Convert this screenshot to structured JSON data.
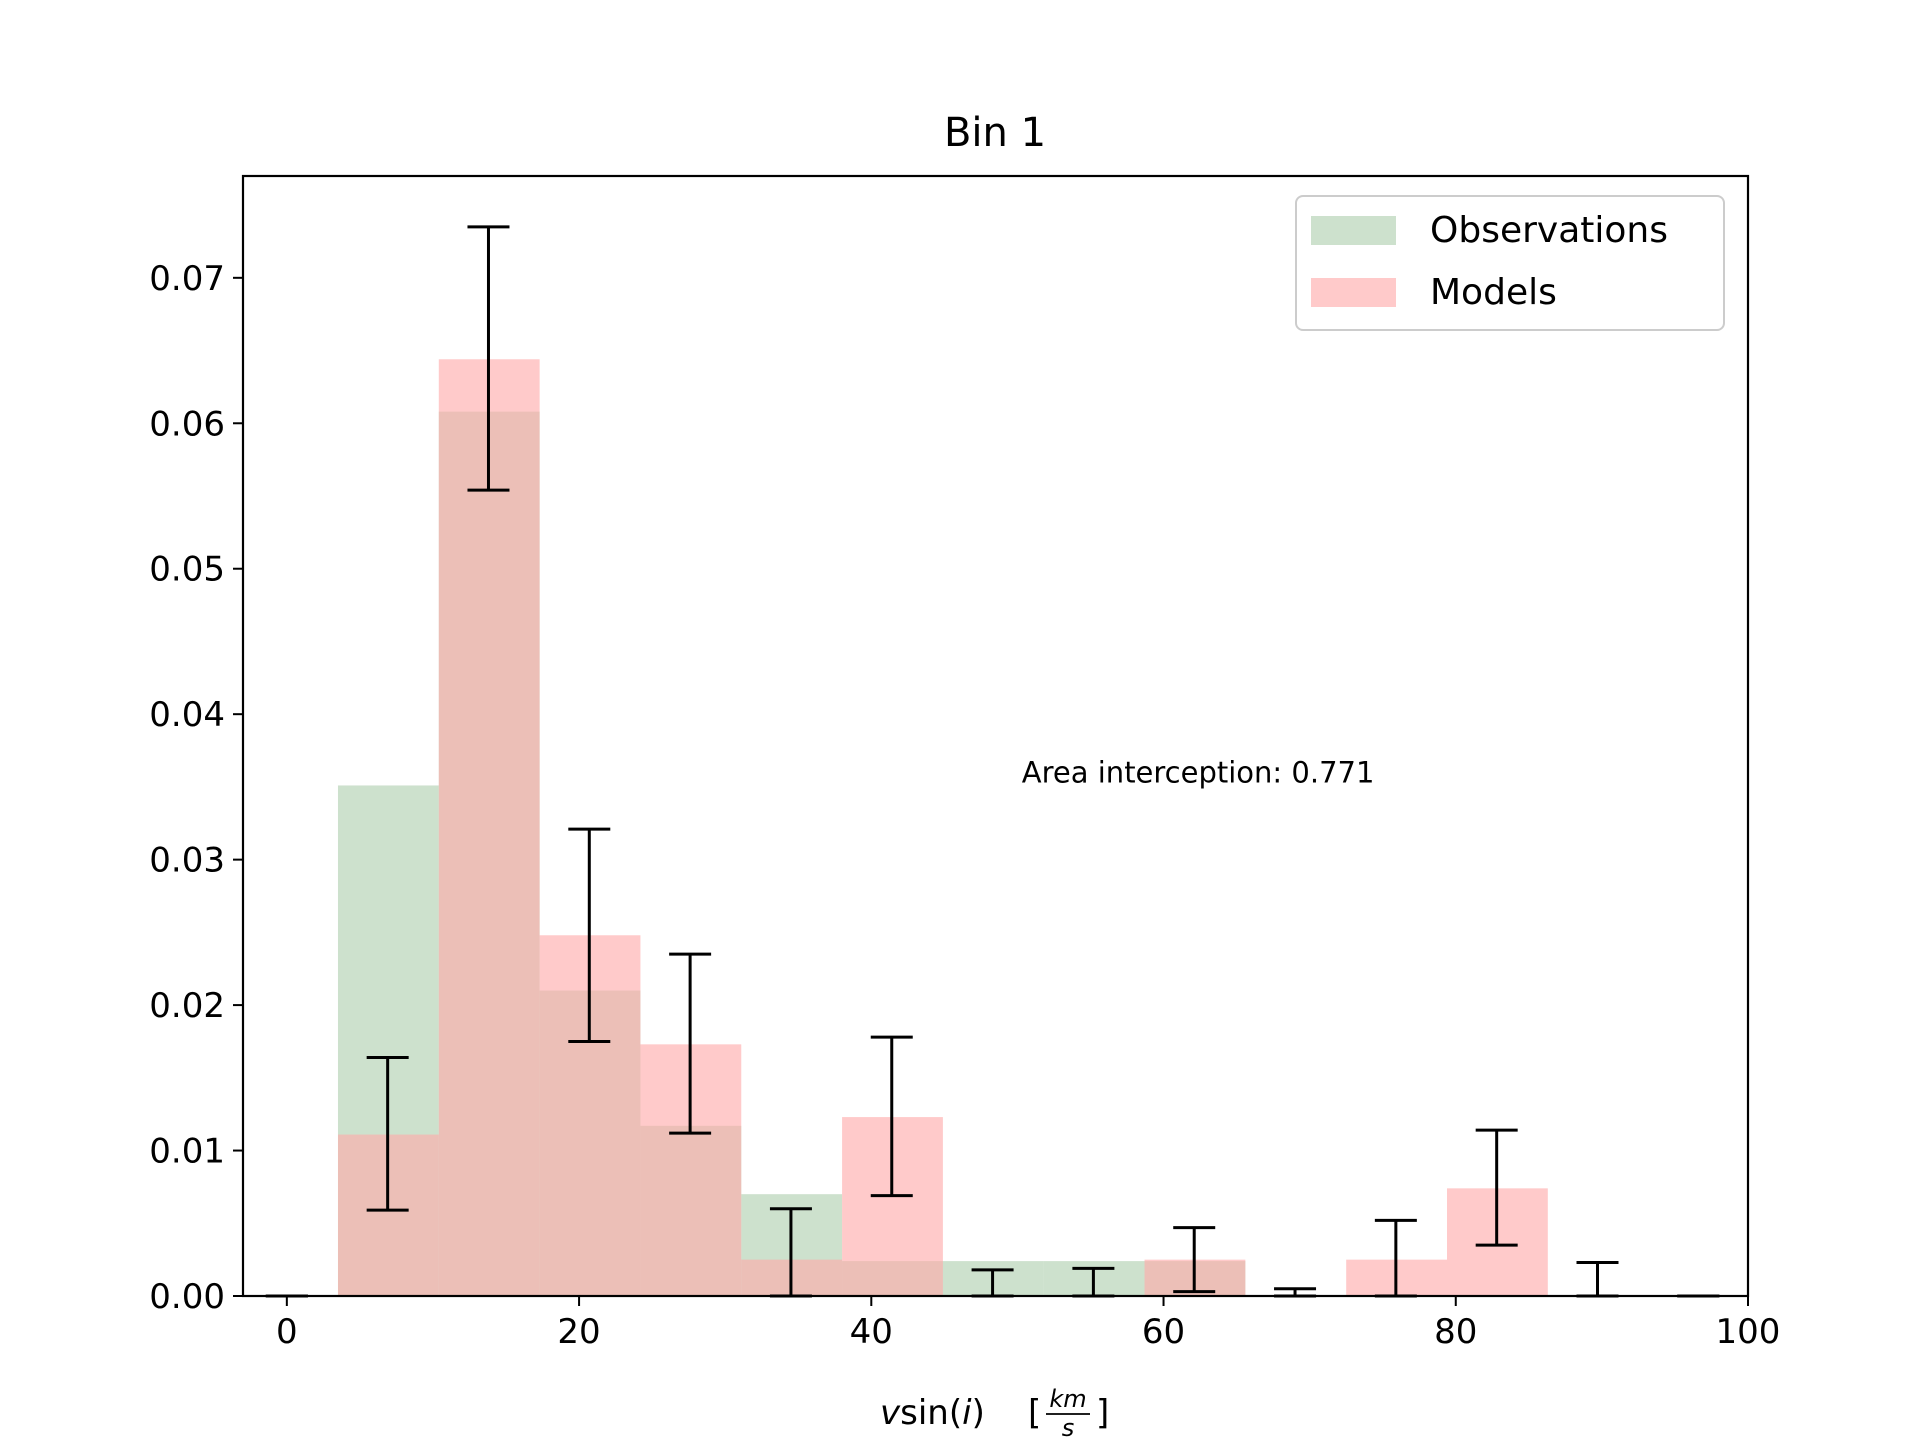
{
  "chart_data": {
    "type": "bar",
    "title": "Bin 1",
    "xlabel": {
      "pre": "v",
      "mid": "sin(",
      "italic": "i",
      "post": ")",
      "frac_num": "km",
      "frac_den": "s",
      "open_bracket": "[",
      "close_bracket": "]"
    },
    "ylabel": "",
    "xlim": [
      -3,
      100
    ],
    "ylim": [
      0,
      0.077
    ],
    "xticks": [
      0,
      20,
      40,
      60,
      80,
      100
    ],
    "yticks": [
      0.0,
      0.01,
      0.02,
      0.03,
      0.04,
      0.05,
      0.06,
      0.07
    ],
    "xtick_labels": [
      "0",
      "20",
      "40",
      "60",
      "80",
      "100"
    ],
    "ytick_labels": [
      "0.00",
      "0.01",
      "0.02",
      "0.03",
      "0.04",
      "0.05",
      "0.06",
      "0.07"
    ],
    "bin_edges": [
      -3.4,
      3.5,
      10.4,
      17.3,
      24.2,
      31.1,
      38.0,
      44.9,
      51.8,
      58.7,
      65.6,
      72.5,
      79.4,
      86.3,
      93.2,
      100.1
    ],
    "series": [
      {
        "name": "Observations",
        "color": "#a9cba9",
        "opacity": 0.58,
        "values": [
          0.0,
          0.0351,
          0.0608,
          0.021,
          0.0117,
          0.007,
          0.0024,
          0.0024,
          0.0024,
          0.0024,
          0.0,
          0.0,
          0.0,
          0.0,
          0.0
        ]
      },
      {
        "name": "Models",
        "color": "#ffaaaa",
        "opacity": 0.62,
        "values": [
          0.0,
          0.0111,
          0.0644,
          0.0248,
          0.0173,
          0.0025,
          0.0123,
          0.0,
          0.0,
          0.0025,
          0.0,
          0.0025,
          0.0074,
          0.0,
          0.0
        ]
      }
    ],
    "error_bars": [
      {
        "x": 0.0,
        "low": 0.0,
        "high": 0.0
      },
      {
        "x": 6.9,
        "low": 0.0059,
        "high": 0.0164
      },
      {
        "x": 13.8,
        "low": 0.0554,
        "high": 0.0735
      },
      {
        "x": 20.7,
        "low": 0.0175,
        "high": 0.0321
      },
      {
        "x": 27.6,
        "low": 0.0112,
        "high": 0.0235
      },
      {
        "x": 34.5,
        "low": 0.0,
        "high": 0.006
      },
      {
        "x": 41.4,
        "low": 0.0069,
        "high": 0.0178
      },
      {
        "x": 48.3,
        "low": 0.0,
        "high": 0.0018
      },
      {
        "x": 55.2,
        "low": 0.0,
        "high": 0.0019
      },
      {
        "x": 62.1,
        "low": 0.0003,
        "high": 0.0047
      },
      {
        "x": 69.0,
        "low": 0.0,
        "high": 0.0005
      },
      {
        "x": 75.9,
        "low": 0.0,
        "high": 0.0052
      },
      {
        "x": 82.8,
        "low": 0.0035,
        "high": 0.0114
      },
      {
        "x": 89.7,
        "low": 0.0,
        "high": 0.0023
      },
      {
        "x": 96.6,
        "low": 0.0,
        "high": 0.0
      }
    ],
    "annotation": {
      "text": "Area interception: 0.771",
      "x": 50.3,
      "y": 0.036
    },
    "legend": {
      "placement": "top-right",
      "entries": [
        "Observations",
        "Models"
      ]
    },
    "grid": false
  }
}
